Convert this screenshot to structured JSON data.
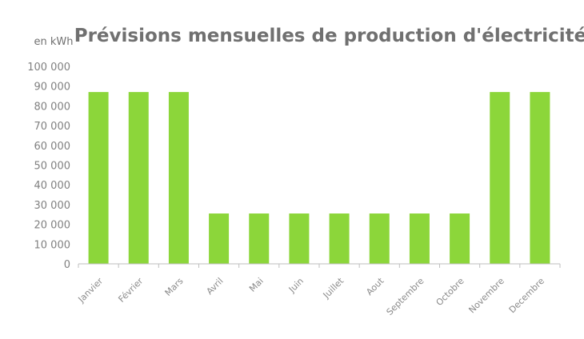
{
  "chart_data": {
    "type": "bar",
    "title": "Prévisions mensuelles de production d'électricité",
    "ylabel": "en kWh",
    "xlabel": "",
    "categories": [
      "Janvier",
      "Février",
      "Mars",
      "Avril",
      "Mai",
      "Juin",
      "Juillet",
      "Aout",
      "Septembre",
      "Octobre",
      "Novembre",
      "Decembre"
    ],
    "values": [
      87000,
      87000,
      87000,
      25500,
      25500,
      25500,
      25500,
      25500,
      25500,
      25500,
      87000,
      87000
    ],
    "ylim": [
      0,
      100000
    ],
    "yticks": [
      0,
      10000,
      20000,
      30000,
      40000,
      50000,
      60000,
      70000,
      80000,
      90000,
      100000
    ],
    "ytick_labels": [
      "0",
      "10 000",
      "20 000",
      "30 000",
      "40 000",
      "50 000",
      "60 000",
      "70 000",
      "80 000",
      "90 000",
      "100 000"
    ],
    "grid": false,
    "bar_color": "#8cd63a",
    "axis_color": "#bfbfbf"
  }
}
